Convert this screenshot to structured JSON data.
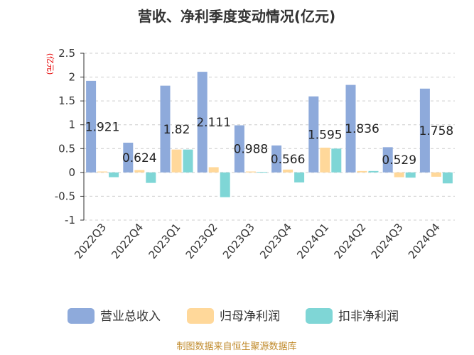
{
  "page": {
    "footer": "制图数据来自恒生聚源数据库"
  },
  "chart_data": {
    "type": "bar",
    "title": "营收、净利季度变动情况(亿元)",
    "ylabel": "(亿元)",
    "xlabel": "",
    "ylim": [
      -1,
      2.5
    ],
    "yticks": [
      2.5,
      2,
      1.5,
      1,
      0.5,
      0,
      -0.5,
      -1
    ],
    "ytick_labels": [
      "2.5",
      "2",
      "1.5",
      "1",
      "0.5",
      "0",
      "-0.5",
      "-1"
    ],
    "grid": true,
    "legend_position": "bottom",
    "categories": [
      "2022Q3",
      "2022Q4",
      "2023Q1",
      "2023Q2",
      "2023Q3",
      "2023Q4",
      "2024Q1",
      "2024Q2",
      "2024Q3",
      "2024Q4"
    ],
    "series": [
      {
        "name": "营业总收入",
        "color": "#8eaadb",
        "values": [
          1.921,
          0.624,
          1.82,
          2.111,
          0.988,
          0.566,
          1.595,
          1.836,
          0.529,
          1.758
        ],
        "labels": [
          "1.921",
          "0.624",
          "1.82",
          "2.111",
          "0.988",
          "0.566",
          "1.595",
          "1.836",
          "0.529",
          "1.758"
        ]
      },
      {
        "name": "归母净利润",
        "color": "#ffd89a",
        "values": [
          0.02,
          0.05,
          0.48,
          0.11,
          0.02,
          0.06,
          0.52,
          0.03,
          -0.1,
          -0.09
        ]
      },
      {
        "name": "扣非净利润",
        "color": "#7fd6d6",
        "values": [
          -0.1,
          -0.22,
          0.48,
          -0.52,
          0.01,
          -0.21,
          0.5,
          0.03,
          -0.11,
          -0.23
        ]
      }
    ]
  }
}
